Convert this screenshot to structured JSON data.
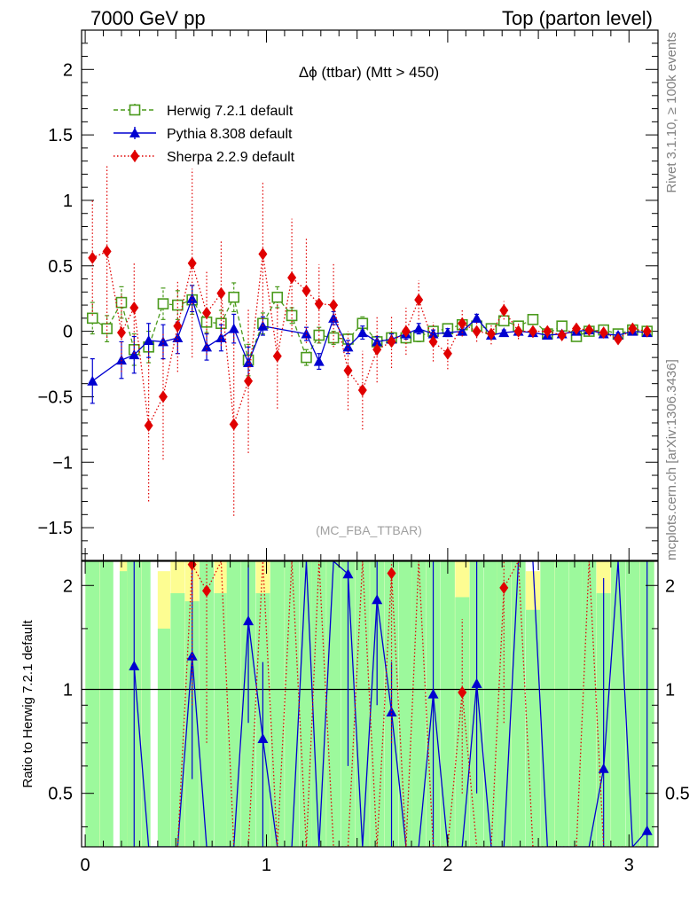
{
  "header": {
    "left": "7000 GeV pp",
    "right": "Top (parton level)"
  },
  "side_labels": {
    "top": "Rivet 3.1.10, ≥ 100k events",
    "bottom": "mcplots.cern.ch [arXiv:1306.3436]"
  },
  "chart_data": [
    {
      "type": "scatter",
      "title": "Δϕ (ttbar) (Mtt > 450)",
      "watermark": "(MC_FBA_TTBAR)",
      "xlim": [
        -0.02,
        3.16
      ],
      "ylim": [
        -1.75,
        2.3
      ],
      "ytick_values": [
        -1.5,
        -1,
        -0.5,
        0,
        0.5,
        1,
        1.5,
        2
      ],
      "ytick_labels": [
        "−1.5",
        "−1",
        "−0.5",
        "0",
        "0.5",
        "1",
        "1.5",
        "2"
      ],
      "legend_position": "top-left",
      "x": [
        0.04,
        0.12,
        0.2,
        0.27,
        0.35,
        0.43,
        0.51,
        0.59,
        0.67,
        0.75,
        0.82,
        0.9,
        0.98,
        1.06,
        1.14,
        1.22,
        1.29,
        1.37,
        1.45,
        1.53,
        1.61,
        1.69,
        1.77,
        1.84,
        1.92,
        2.0,
        2.08,
        2.16,
        2.24,
        2.31,
        2.39,
        2.47,
        2.55,
        2.63,
        2.71,
        2.78,
        2.86,
        2.94,
        3.02,
        3.1
      ],
      "series": [
        {
          "name": "Herwig 7.2.1 default",
          "color": "#4a9a1c",
          "marker": "open-square",
          "line": "dashed",
          "values": [
            0.1,
            0.02,
            0.22,
            -0.14,
            -0.12,
            0.21,
            0.2,
            0.24,
            0.07,
            0.06,
            0.26,
            -0.22,
            0.06,
            0.26,
            0.12,
            -0.2,
            -0.03,
            -0.05,
            -0.06,
            0.06,
            -0.08,
            -0.05,
            -0.05,
            -0.04,
            0.0,
            0.02,
            0.05,
            0.04,
            0.02,
            0.08,
            0.04,
            0.09,
            -0.02,
            0.04,
            -0.04,
            0.0,
            0.01,
            -0.02,
            0.01,
            0.0
          ],
          "errors": [
            0.12,
            0.1,
            0.12,
            0.12,
            0.12,
            0.12,
            0.11,
            0.11,
            0.08,
            0.1,
            0.11,
            0.12,
            0.08,
            0.08,
            0.06,
            0.06,
            0.06,
            0.05,
            0.04,
            0.05,
            0.04,
            0.04,
            0.04,
            0.04,
            0.03,
            0.03,
            0.03,
            0.03,
            0.03,
            0.03,
            0.02,
            0.02,
            0.02,
            0.02,
            0.02,
            0.02,
            0.02,
            0.02,
            0.02,
            0.02
          ]
        },
        {
          "name": "Pythia 8.308 default",
          "color": "#0000d0",
          "marker": "filled-triangle",
          "line": "solid",
          "values": [
            -0.38,
            null,
            -0.22,
            -0.18,
            -0.07,
            -0.08,
            -0.05,
            0.25,
            -0.12,
            -0.05,
            0.02,
            -0.24,
            0.04,
            null,
            null,
            -0.02,
            -0.23,
            0.1,
            -0.12,
            -0.01,
            -0.08,
            -0.06,
            -0.02,
            0.02,
            -0.02,
            -0.01,
            0.0,
            0.1,
            -0.03,
            -0.01,
            0.0,
            -0.01,
            -0.03,
            -0.02,
            0.0,
            0.01,
            -0.02,
            -0.03,
            0.0,
            -0.01
          ],
          "errors": [
            0.17,
            null,
            0.14,
            0.14,
            0.13,
            0.13,
            0.12,
            0.1,
            0.1,
            0.1,
            0.11,
            0.12,
            0.07,
            null,
            null,
            0.05,
            0.06,
            0.05,
            0.05,
            0.05,
            0.04,
            0.04,
            0.04,
            0.04,
            0.03,
            0.03,
            0.03,
            0.03,
            0.02,
            0.02,
            0.02,
            0.02,
            0.02,
            0.02,
            0.02,
            0.02,
            0.02,
            0.02,
            0.02,
            0.02
          ]
        },
        {
          "name": "Sherpa 2.2.9 default",
          "color": "#e00000",
          "marker": "filled-diamond",
          "line": "dotted",
          "values": [
            0.56,
            0.61,
            -0.01,
            0.18,
            -0.72,
            -0.5,
            0.04,
            0.52,
            0.14,
            0.29,
            -0.71,
            -0.38,
            0.59,
            -0.19,
            0.41,
            0.31,
            0.21,
            0.2,
            -0.3,
            -0.45,
            -0.14,
            -0.08,
            0.0,
            0.24,
            -0.08,
            -0.17,
            0.06,
            0.0,
            -0.02,
            0.16,
            0.0,
            0.0,
            0.0,
            -0.03,
            0.02,
            0.01,
            -0.01,
            -0.06,
            0.02,
            0.0
          ],
          "errors": [
            0.44,
            0.66,
            0.3,
            0.35,
            0.58,
            0.48,
            0.35,
            0.72,
            0.32,
            0.4,
            0.7,
            0.55,
            0.55,
            0.4,
            0.45,
            0.4,
            0.3,
            0.32,
            0.3,
            0.3,
            0.25,
            0.2,
            0.18,
            0.15,
            0.15,
            0.12,
            0.1,
            0.08,
            0.08,
            0.07,
            0.06,
            0.05,
            0.05,
            0.04,
            0.04,
            0.03,
            0.03,
            0.03,
            0.03,
            0.03
          ]
        }
      ]
    },
    {
      "type": "scatter",
      "ylabel": "Ratio to Herwig 7.2.1 default",
      "xlim": [
        -0.02,
        3.16
      ],
      "ylim": [
        0.35,
        2.35
      ],
      "reference_line": 1,
      "ytick_values": [
        0.5,
        1,
        2
      ],
      "ytick_labels": [
        "0.5",
        "1",
        "2"
      ],
      "xtick_values": [
        0,
        1,
        2,
        3
      ],
      "xtick_labels": [
        "0",
        "1",
        "2",
        "3"
      ],
      "bands": {
        "inner_color": "#9cf99c",
        "outer_color": "#fdfd92",
        "green_low": [
          0.35,
          0.35,
          0.35,
          0.35,
          0.35,
          0.35,
          0.35,
          0.35,
          0.35,
          0.35,
          0.35,
          0.35,
          0.35,
          0.35,
          0.35,
          0.35,
          0.35,
          0.35,
          0.35,
          0.35,
          0.35,
          0.35,
          0.35,
          0.35,
          0.35,
          0.35,
          0.35,
          0.35,
          0.35,
          0.35,
          0.35,
          0.35,
          0.35,
          0.35,
          0.35,
          0.35,
          0.35,
          0.35,
          0.35,
          0.35
        ],
        "green_high": [
          2.35,
          2.35,
          2.2,
          2.35,
          2.35,
          1.5,
          1.9,
          1.8,
          2.35,
          1.9,
          2.35,
          2.35,
          1.9,
          2.35,
          2.35,
          2.35,
          2.35,
          2.35,
          2.35,
          2.35,
          2.35,
          2.35,
          2.35,
          2.35,
          2.35,
          2.35,
          1.85,
          2.35,
          2.35,
          2.35,
          2.35,
          1.7,
          2.35,
          2.35,
          2.35,
          2.35,
          1.9,
          2.35,
          2.35,
          2.35
        ],
        "yellow_low": [
          0.35,
          0.35,
          0.35,
          0.35,
          0.35,
          0.35,
          0.35,
          0.35,
          0.35,
          0.35,
          0.35,
          0.35,
          0.35,
          0.35,
          0.35,
          0.35,
          0.35,
          0.35,
          0.35,
          0.35,
          0.35,
          0.35,
          0.35,
          0.35,
          0.35,
          0.35,
          0.35,
          0.35,
          0.35,
          0.35,
          0.35,
          0.35,
          0.35,
          0.35,
          0.35,
          0.35,
          0.35,
          0.35,
          0.35,
          0.35
        ],
        "yellow_high": [
          2.35,
          2.35,
          2.35,
          2.35,
          2.35,
          2.2,
          2.35,
          2.35,
          2.35,
          2.35,
          2.35,
          2.35,
          2.35,
          2.35,
          2.35,
          2.35,
          2.35,
          2.35,
          2.35,
          2.35,
          2.35,
          2.35,
          2.35,
          2.35,
          2.35,
          2.35,
          2.35,
          2.35,
          2.35,
          2.35,
          2.35,
          2.2,
          2.35,
          2.35,
          2.35,
          2.35,
          2.35,
          2.35,
          2.35,
          2.35
        ]
      },
      "series": [
        {
          "name": "Pythia 8.308 default",
          "color": "#0000d0",
          "marker": "filled-triangle",
          "line": "solid",
          "points": [
            [
              0.27,
              1.17,
              0.35,
              2.35
            ],
            [
              0.59,
              1.25,
              0.55,
              2.35
            ],
            [
              0.9,
              1.58,
              0.8,
              2.3
            ],
            [
              0.98,
              0.72,
              0.35,
              1.2
            ],
            [
              1.45,
              2.16,
              0.6,
              2.35
            ],
            [
              1.61,
              1.82,
              0.9,
              2.35
            ],
            [
              1.69,
              0.86,
              0.35,
              1.2
            ],
            [
              1.92,
              0.97,
              0.35,
              2.35
            ],
            [
              2.16,
              1.04,
              0.5,
              2.35
            ],
            [
              2.86,
              0.59,
              0.35,
              2.1
            ],
            [
              3.1,
              0.39,
              0.35,
              2.35
            ]
          ],
          "path": [
            [
              0.27,
              1.17
            ],
            [
              0.35,
              0.35
            ],
            [
              0.43,
              0.35
            ],
            [
              0.51,
              0.35
            ],
            [
              0.59,
              1.25
            ],
            [
              0.67,
              0.35
            ],
            [
              0.75,
              0.35
            ],
            [
              0.82,
              0.35
            ],
            [
              0.9,
              1.58
            ],
            [
              0.98,
              0.72
            ],
            [
              1.06,
              0.35
            ],
            [
              1.14,
              0.35
            ],
            [
              1.22,
              2.35
            ],
            [
              1.29,
              0.35
            ],
            [
              1.37,
              2.35
            ],
            [
              1.45,
              2.16
            ],
            [
              1.53,
              0.35
            ],
            [
              1.61,
              1.82
            ],
            [
              1.69,
              0.86
            ],
            [
              1.77,
              0.35
            ],
            [
              1.84,
              0.35
            ],
            [
              1.92,
              0.97
            ],
            [
              2.0,
              0.35
            ],
            [
              2.08,
              0.35
            ],
            [
              2.16,
              1.04
            ],
            [
              2.24,
              0.35
            ],
            [
              2.31,
              0.35
            ],
            [
              2.39,
              2.35
            ],
            [
              2.47,
              2.35
            ],
            [
              2.55,
              0.35
            ],
            [
              2.63,
              0.35
            ],
            [
              2.71,
              0.35
            ],
            [
              2.78,
              0.35
            ],
            [
              2.86,
              0.59
            ],
            [
              2.94,
              2.35
            ],
            [
              3.02,
              0.35
            ],
            [
              3.1,
              0.39
            ]
          ]
        },
        {
          "name": "Sherpa 2.2.9 default",
          "color": "#e00000",
          "marker": "filled-diamond",
          "line": "dotted",
          "points": [
            [
              0.59,
              2.3,
              0.9,
              2.35
            ],
            [
              0.67,
              1.93,
              0.7,
              2.35
            ],
            [
              1.69,
              2.17,
              0.7,
              2.35
            ],
            [
              2.08,
              0.98,
              0.5,
              1.6
            ],
            [
              2.31,
              1.97,
              0.8,
              2.35
            ]
          ],
          "path": [
            [
              0.51,
              0.35
            ],
            [
              0.59,
              2.3
            ],
            [
              0.67,
              1.93
            ],
            [
              0.75,
              2.35
            ],
            [
              0.82,
              0.35
            ],
            [
              0.9,
              0.35
            ],
            [
              0.98,
              2.35
            ],
            [
              1.06,
              0.35
            ],
            [
              1.14,
              2.35
            ],
            [
              1.22,
              0.35
            ],
            [
              1.29,
              2.35
            ],
            [
              1.37,
              0.35
            ],
            [
              1.45,
              0.35
            ],
            [
              1.53,
              2.35
            ],
            [
              1.61,
              0.35
            ],
            [
              1.69,
              2.17
            ],
            [
              1.77,
              0.35
            ],
            [
              1.84,
              2.35
            ],
            [
              1.92,
              0.35
            ],
            [
              2.0,
              0.35
            ],
            [
              2.08,
              0.98
            ],
            [
              2.16,
              0.35
            ],
            [
              2.24,
              0.35
            ],
            [
              2.31,
              1.97
            ],
            [
              2.39,
              2.35
            ],
            [
              2.47,
              0.35
            ],
            [
              2.55,
              0.35
            ],
            [
              2.63,
              0.35
            ],
            [
              2.71,
              0.35
            ],
            [
              2.78,
              2.35
            ],
            [
              2.86,
              0.35
            ],
            [
              2.94,
              0.35
            ],
            [
              3.02,
              0.35
            ],
            [
              3.1,
              0.35
            ]
          ]
        }
      ]
    }
  ]
}
